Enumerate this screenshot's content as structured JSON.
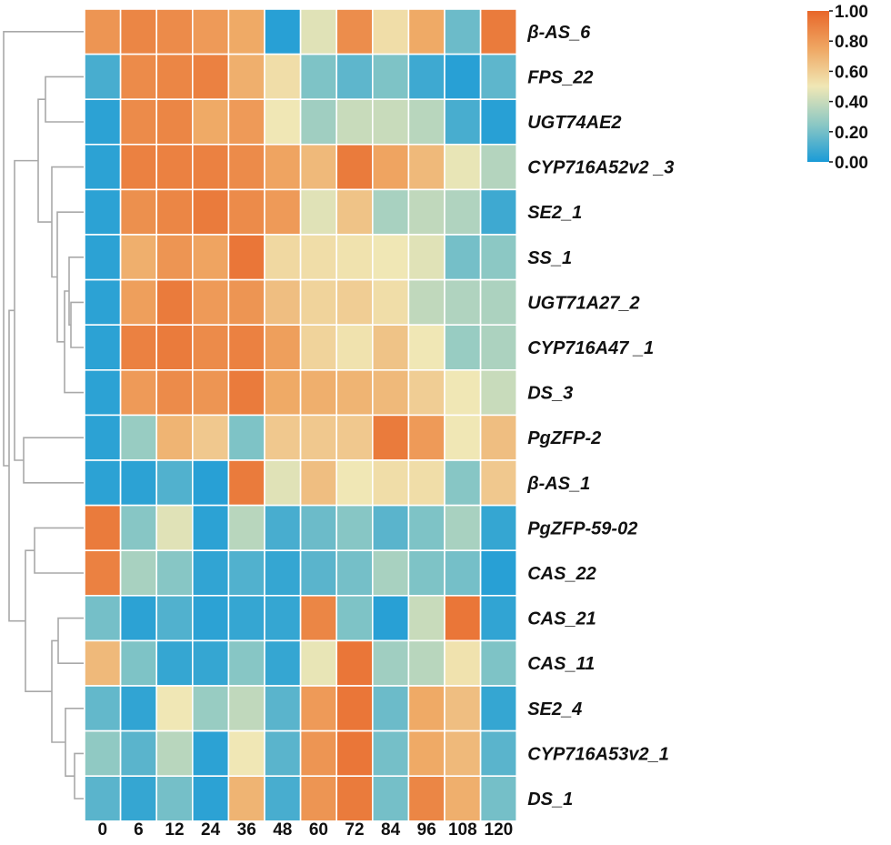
{
  "chart_data": {
    "type": "heatmap",
    "columns": [
      "0",
      "6",
      "12",
      "24",
      "36",
      "48",
      "60",
      "72",
      "84",
      "96",
      "108",
      "120"
    ],
    "rows": [
      "β-AS_6",
      "FPS_22",
      "UGT74AE2",
      "CYP716A52v2 _3",
      "SE2_1",
      "SS_1",
      "UGT71A27_2",
      "CYP716A47 _1",
      "DS_3",
      "PgZFP-2",
      "β-AS_1",
      "PgZFP-59-02",
      "CAS_22",
      "CAS_21",
      "CAS_11",
      "SE2_4",
      "CYP716A53v2_1",
      "DS_1"
    ],
    "values": [
      [
        0.82,
        0.88,
        0.86,
        0.8,
        0.74,
        0.03,
        0.46,
        0.85,
        0.54,
        0.74,
        0.18,
        0.92
      ],
      [
        0.1,
        0.86,
        0.88,
        0.9,
        0.72,
        0.54,
        0.22,
        0.15,
        0.22,
        0.08,
        0.03,
        0.15
      ],
      [
        0.04,
        0.86,
        0.88,
        0.74,
        0.8,
        0.5,
        0.3,
        0.4,
        0.4,
        0.36,
        0.1,
        0.03
      ],
      [
        0.04,
        0.9,
        0.9,
        0.9,
        0.86,
        0.76,
        0.68,
        0.92,
        0.76,
        0.68,
        0.48,
        0.35
      ],
      [
        0.04,
        0.84,
        0.88,
        0.92,
        0.86,
        0.8,
        0.46,
        0.64,
        0.32,
        0.38,
        0.34,
        0.08
      ],
      [
        0.04,
        0.72,
        0.82,
        0.76,
        0.94,
        0.56,
        0.54,
        0.52,
        0.5,
        0.46,
        0.2,
        0.25
      ],
      [
        0.04,
        0.78,
        0.92,
        0.8,
        0.82,
        0.66,
        0.58,
        0.6,
        0.54,
        0.38,
        0.34,
        0.33
      ],
      [
        0.04,
        0.9,
        0.92,
        0.86,
        0.9,
        0.78,
        0.58,
        0.52,
        0.64,
        0.5,
        0.28,
        0.33
      ],
      [
        0.04,
        0.8,
        0.86,
        0.82,
        0.92,
        0.74,
        0.72,
        0.7,
        0.68,
        0.6,
        0.5,
        0.4
      ],
      [
        0.04,
        0.28,
        0.7,
        0.62,
        0.22,
        0.62,
        0.62,
        0.62,
        0.92,
        0.8,
        0.5,
        0.66
      ],
      [
        0.04,
        0.04,
        0.12,
        0.03,
        0.92,
        0.46,
        0.66,
        0.5,
        0.54,
        0.54,
        0.24,
        0.62
      ],
      [
        0.92,
        0.24,
        0.46,
        0.04,
        0.36,
        0.1,
        0.18,
        0.24,
        0.14,
        0.22,
        0.32,
        0.06
      ],
      [
        0.9,
        0.32,
        0.24,
        0.05,
        0.12,
        0.06,
        0.14,
        0.2,
        0.32,
        0.22,
        0.2,
        0.03
      ],
      [
        0.2,
        0.04,
        0.12,
        0.04,
        0.06,
        0.06,
        0.88,
        0.22,
        0.03,
        0.4,
        0.94,
        0.05
      ],
      [
        0.68,
        0.22,
        0.06,
        0.06,
        0.24,
        0.06,
        0.48,
        0.94,
        0.3,
        0.36,
        0.52,
        0.22
      ],
      [
        0.16,
        0.05,
        0.5,
        0.28,
        0.38,
        0.14,
        0.8,
        0.94,
        0.18,
        0.74,
        0.66,
        0.06
      ],
      [
        0.26,
        0.14,
        0.36,
        0.04,
        0.5,
        0.14,
        0.82,
        0.94,
        0.2,
        0.74,
        0.68,
        0.14
      ],
      [
        0.14,
        0.06,
        0.2,
        0.04,
        0.7,
        0.1,
        0.82,
        0.92,
        0.2,
        0.88,
        0.72,
        0.2
      ]
    ],
    "color_scale": {
      "min": 0.0,
      "max": 1.0,
      "stops": [
        {
          "value": 0.0,
          "color": "#1a9bd7"
        },
        {
          "value": 0.25,
          "color": "#8cc8c4"
        },
        {
          "value": 0.5,
          "color": "#f0e7b5"
        },
        {
          "value": 0.75,
          "color": "#efa763"
        },
        {
          "value": 1.0,
          "color": "#e8672a"
        }
      ]
    },
    "legend": {
      "position": "top-right",
      "ticks": [
        "1.00",
        "0.80",
        "0.60",
        "0.40",
        "0.20",
        "0.00"
      ]
    },
    "dendrogram": "row",
    "cell_border_color": "#ffffff",
    "dendrogram_color": "#a9a9a9"
  }
}
